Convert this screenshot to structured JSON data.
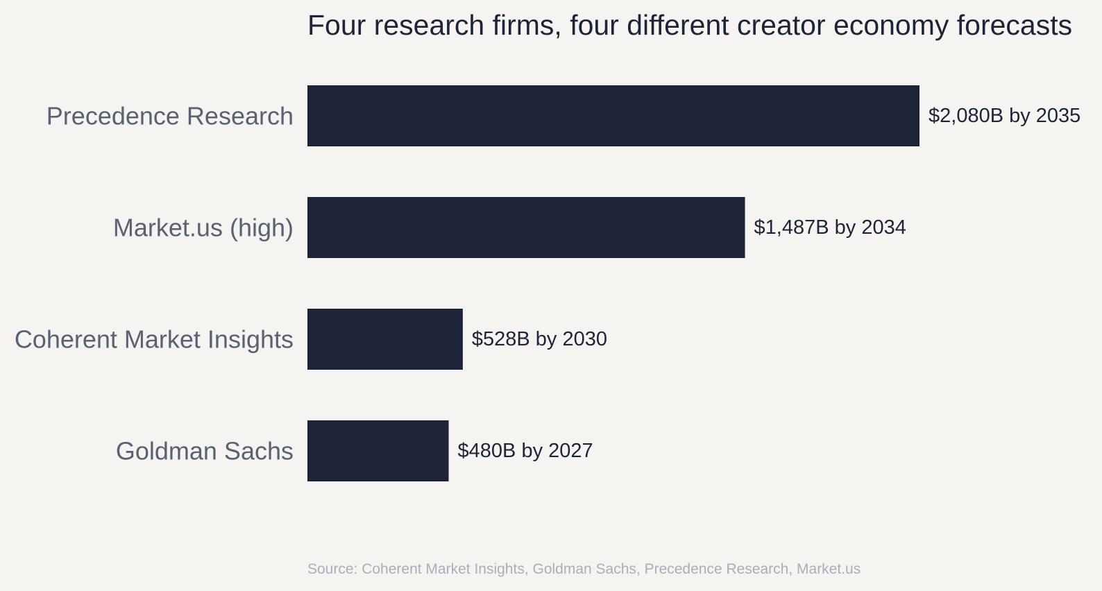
{
  "chart_data": {
    "type": "bar",
    "orientation": "horizontal",
    "title": "Four research firms, four different creator economy forecasts",
    "categories": [
      "Precedence Research",
      "Market.us (high)",
      "Coherent Market Insights",
      "Goldman Sachs"
    ],
    "values": [
      2080,
      1487,
      528,
      480
    ],
    "unit": "$B",
    "data_labels": [
      "$2,080B by 2035",
      "$1,487B by 2034",
      "$528B by 2030",
      "$480B by 2027"
    ],
    "xlim": [
      0,
      2080
    ],
    "grid": false,
    "legend": "none",
    "source": "Source: Coherent Market Insights, Goldman Sachs, Precedence Research, Market.us",
    "colors": {
      "bar": "#1e2437",
      "background": "#f5f4f1",
      "title": "#1e2437",
      "category_label": "#5a6173",
      "data_label": "#1e2437",
      "source": "#a9aebb"
    }
  }
}
